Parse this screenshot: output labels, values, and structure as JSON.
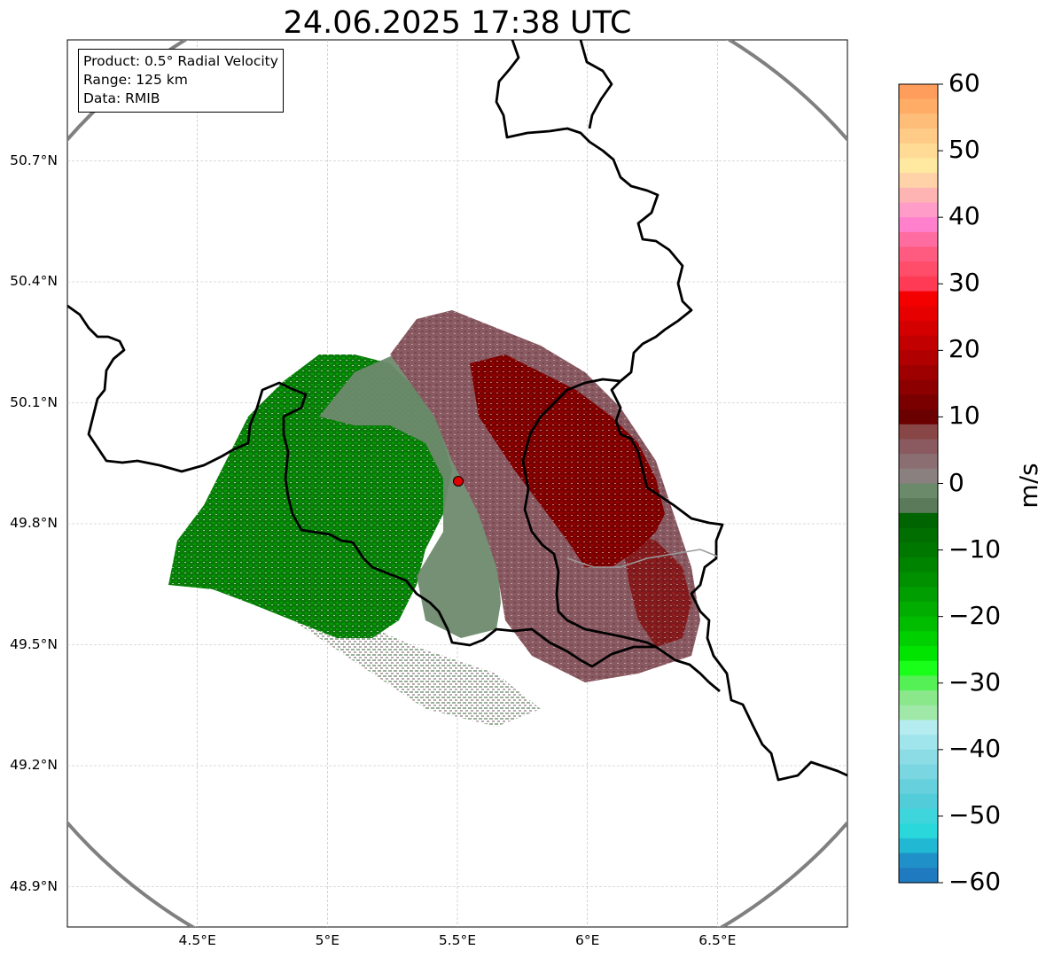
{
  "title": "24.06.2025 17:38 UTC",
  "info_box": {
    "product": "Product: 0.5° Radial Velocity",
    "range": "Range: 125 km",
    "data": "Data: RMIB"
  },
  "map": {
    "lon_range": [
      4.0,
      7.0
    ],
    "lat_range": [
      48.8,
      51.0
    ],
    "lon_ticks": [
      "4.5°E",
      "5°E",
      "5.5°E",
      "6°E",
      "6.5°E"
    ],
    "lat_ticks": [
      "50.7°N",
      "50.4°N",
      "50.1°N",
      "49.8°N",
      "49.5°N",
      "49.2°N",
      "48.9°N"
    ],
    "radar_site": {
      "lon": 5.5,
      "lat": 49.915
    },
    "range_ring_km": 125,
    "gridlines": true,
    "border_color": "#000000",
    "ring_color": "#808080",
    "site_color": "#e00000"
  },
  "colorbar": {
    "unit": "m/s",
    "min": -60,
    "max": 60,
    "tick_labels": [
      "60",
      "50",
      "40",
      "30",
      "20",
      "10",
      "0",
      "−10",
      "−20",
      "−30",
      "−40",
      "−50",
      "−60"
    ],
    "colors_top_to_bottom": [
      "#ff9e5c",
      "#ffad66",
      "#ffbd7a",
      "#ffcb87",
      "#ffdb95",
      "#ffe9a0",
      "#ffd2a8",
      "#ffb4b4",
      "#ff9cc8",
      "#ff80cc",
      "#ff6ca0",
      "#ff5a80",
      "#ff4d6a",
      "#ff3a55",
      "#f50000",
      "#e60000",
      "#d40000",
      "#c20000",
      "#b00000",
      "#9e0000",
      "#8c0000",
      "#7a0000",
      "#6b0000",
      "#884646",
      "#8a5a60",
      "#8a6e72",
      "#8a8080",
      "#6a8a6a",
      "#5a7a5a",
      "#006400",
      "#006e00",
      "#007800",
      "#008400",
      "#009000",
      "#009e00",
      "#00ad00",
      "#00bd00",
      "#00d000",
      "#00e400",
      "#1aff1a",
      "#55f055",
      "#8ae88a",
      "#a0e8a8",
      "#b4ecf0",
      "#a0e4ec",
      "#8cdce6",
      "#7ad6e0",
      "#66d0dc",
      "#52ccd8",
      "#3ed6dc",
      "#2ad8dc",
      "#20b8d2",
      "#2090c8",
      "#1f7abf"
    ]
  }
}
